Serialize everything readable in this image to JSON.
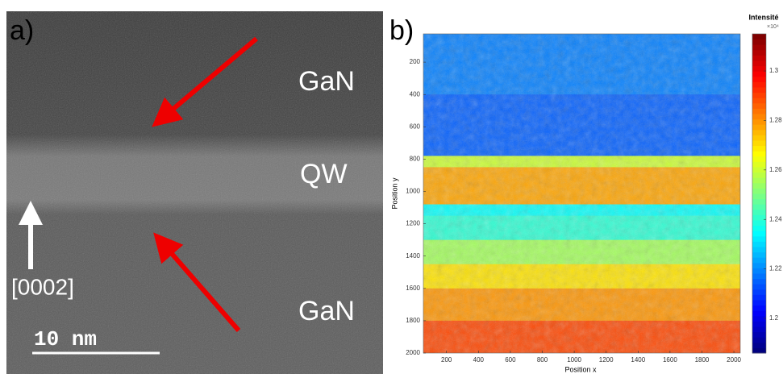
{
  "figure_a": {
    "panel_label": "a)",
    "layer_top": "GaN",
    "layer_middle": "QW",
    "layer_bottom": "GaN",
    "direction": "[0002]",
    "scale_bar": "10 nm"
  },
  "chart_data": {
    "type": "heatmap",
    "panel_label": "b)",
    "x_label": "Position x",
    "y_label": "Position y",
    "colorbar_label": "Intensité",
    "colorbar_exponent": "×10⁴",
    "xlim": [
      55,
      2040
    ],
    "xticks": [
      200,
      400,
      600,
      800,
      1000,
      1200,
      1400,
      1600,
      1800,
      2000
    ],
    "ylim": [
      25,
      2000
    ],
    "yticks": [
      200,
      400,
      600,
      800,
      1000,
      1200,
      1400,
      1600,
      1800,
      2000
    ],
    "y_inverted": true,
    "clim": [
      1.186,
      1.315
    ],
    "cticks": [
      1.2,
      1.22,
      1.24,
      1.26,
      1.28,
      1.3
    ],
    "colormap": "jet",
    "y_bins": [
      25,
      400,
      780,
      850,
      1080,
      1150,
      1300,
      1450,
      1600,
      1800,
      2000
    ],
    "values": [
      1.218,
      1.214,
      1.26,
      1.278,
      1.235,
      1.24,
      1.255,
      1.27,
      1.28,
      1.29
    ]
  }
}
